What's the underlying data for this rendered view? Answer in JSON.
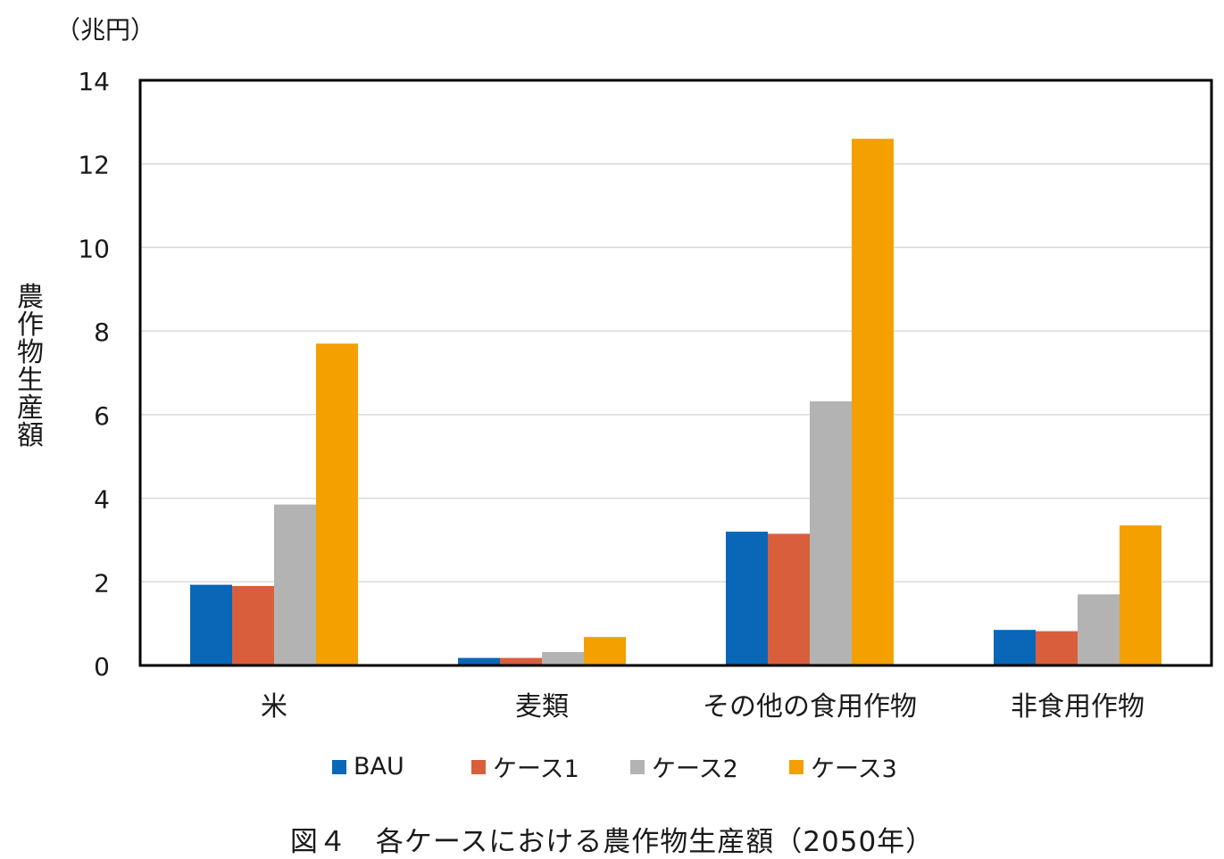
{
  "chart_data": {
    "type": "bar",
    "unit_label": "（兆円）",
    "ylabel": "農作物生産額",
    "categories": [
      "米",
      "麦類",
      "その他の食用作物",
      "非食用作物"
    ],
    "series": [
      {
        "name": "BAU",
        "color": "#0a66b7",
        "values": [
          1.93,
          0.18,
          3.2,
          0.85
        ]
      },
      {
        "name": "ケース1",
        "color": "#d95f3c",
        "values": [
          1.9,
          0.18,
          3.15,
          0.82
        ]
      },
      {
        "name": "ケース2",
        "color": "#b3b3b3",
        "values": [
          3.85,
          0.32,
          6.32,
          1.7
        ]
      },
      {
        "name": "ケース3",
        "color": "#f3a000",
        "values": [
          7.7,
          0.68,
          12.6,
          3.35
        ]
      }
    ],
    "ylim": [
      0,
      14
    ],
    "yticks": [
      0,
      2,
      4,
      6,
      8,
      10,
      12,
      14
    ],
    "ytick_labels": [
      "0",
      "2",
      "4",
      "6",
      "8",
      "10",
      "12",
      "14"
    ],
    "grid": true,
    "legend_position": "bottom"
  },
  "caption": "図４　各ケースにおける農作物生産額（2050年）"
}
